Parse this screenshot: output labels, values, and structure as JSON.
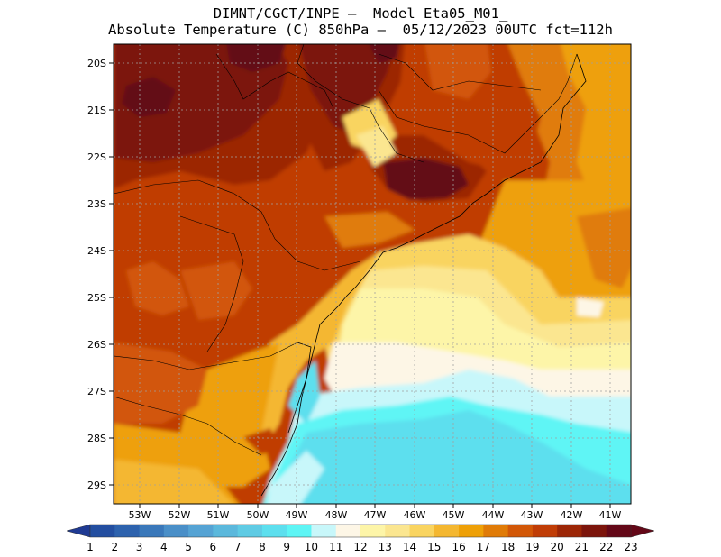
{
  "title": {
    "line1": "DIMNT/CGCT/INPE –  Model Eta05_M01_",
    "line2": "Absolute Temperature (C) 850hPa –  05/12/2023 00UTC fct=112h"
  },
  "map": {
    "lat_labels": [
      "20S",
      "21S",
      "22S",
      "23S",
      "24S",
      "25S",
      "26S",
      "27S",
      "28S",
      "29S"
    ],
    "lon_labels": [
      "53W",
      "52W",
      "51W",
      "50W",
      "49W",
      "48W",
      "47W",
      "46W",
      "45W",
      "44W",
      "43W",
      "42W",
      "41W"
    ]
  },
  "colorbar": {
    "labels": [
      "1",
      "2",
      "3",
      "4",
      "5",
      "6",
      "7",
      "8",
      "9",
      "10",
      "11",
      "12",
      "13",
      "14",
      "15",
      "16",
      "17",
      "18",
      "19",
      "20",
      "21",
      "22",
      "23"
    ],
    "colors": [
      "#1f3a93",
      "#234ea0",
      "#2d62ad",
      "#3a78ba",
      "#4a8fc8",
      "#55a3d4",
      "#5bb8dc",
      "#5fcbe4",
      "#5ddfee",
      "#5ef5f5",
      "#c8f7fa",
      "#fdf6e6",
      "#fdf5a8",
      "#fbe690",
      "#f9d460",
      "#f4b730",
      "#eea007",
      "#e07b07",
      "#d25707",
      "#c03d06",
      "#9c2606",
      "#7c150c",
      "#640818"
    ],
    "left_tip": "#1f3a93",
    "right_tip": "#640818"
  }
}
